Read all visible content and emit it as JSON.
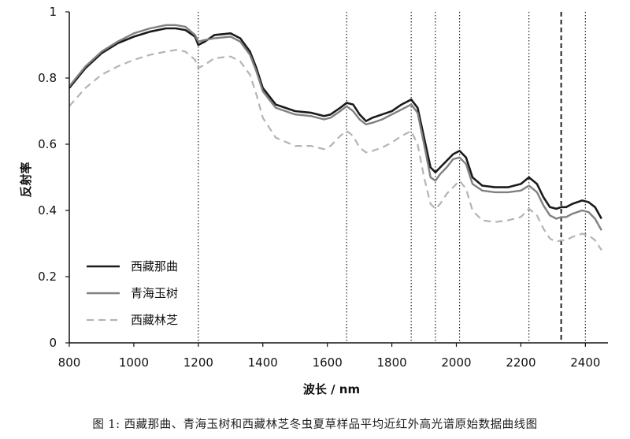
{
  "caption": "图 1:  西藏那曲、青海玉树和西藏林芝冬虫夏草样品平均近红外高光谱原始数据曲线图",
  "chart_data": {
    "type": "line",
    "title": "",
    "xlabel": "波长 / nm",
    "ylabel": "反射率",
    "xlim": [
      800,
      2470
    ],
    "ylim": [
      0,
      1
    ],
    "xticks": [
      800,
      1000,
      1200,
      1400,
      1600,
      1800,
      2000,
      2200,
      2400
    ],
    "yticks": [
      0,
      0.2,
      0.4,
      0.6,
      0.8,
      1
    ],
    "ytick_labels": [
      "0",
      "0.2",
      "0.4",
      "0.6",
      "0.8",
      "1"
    ],
    "legend_position": "bottom-left",
    "vertical_markers": [
      {
        "x": 1200,
        "style": "dotted"
      },
      {
        "x": 1660,
        "style": "dotted"
      },
      {
        "x": 1860,
        "style": "dotted"
      },
      {
        "x": 1935,
        "style": "dotted"
      },
      {
        "x": 2010,
        "style": "dotted"
      },
      {
        "x": 2225,
        "style": "dotted"
      },
      {
        "x": 2325,
        "style": "dashed"
      },
      {
        "x": 2400,
        "style": "dotted"
      }
    ],
    "series": [
      {
        "name": "西藏那曲",
        "color": "#1a1a1a",
        "style": "solid",
        "x": [
          800,
          850,
          900,
          950,
          1000,
          1050,
          1100,
          1130,
          1160,
          1190,
          1200,
          1220,
          1250,
          1300,
          1330,
          1360,
          1380,
          1400,
          1440,
          1500,
          1550,
          1590,
          1610,
          1640,
          1660,
          1680,
          1700,
          1720,
          1740,
          1770,
          1800,
          1830,
          1860,
          1880,
          1900,
          1920,
          1935,
          1950,
          1970,
          1990,
          2010,
          2030,
          2050,
          2080,
          2120,
          2160,
          2200,
          2225,
          2250,
          2270,
          2290,
          2310,
          2325,
          2340,
          2360,
          2390,
          2410,
          2430,
          2450
        ],
        "values": [
          0.77,
          0.83,
          0.875,
          0.905,
          0.925,
          0.94,
          0.95,
          0.95,
          0.945,
          0.925,
          0.9,
          0.91,
          0.93,
          0.935,
          0.92,
          0.88,
          0.83,
          0.77,
          0.72,
          0.7,
          0.695,
          0.685,
          0.69,
          0.71,
          0.725,
          0.72,
          0.69,
          0.67,
          0.68,
          0.69,
          0.7,
          0.72,
          0.735,
          0.71,
          0.62,
          0.53,
          0.515,
          0.53,
          0.55,
          0.57,
          0.58,
          0.56,
          0.5,
          0.475,
          0.47,
          0.47,
          0.48,
          0.5,
          0.48,
          0.44,
          0.41,
          0.405,
          0.41,
          0.41,
          0.42,
          0.43,
          0.425,
          0.41,
          0.375
        ]
      },
      {
        "name": "青海玉树",
        "color": "#808080",
        "style": "solid",
        "x": [
          800,
          850,
          900,
          950,
          1000,
          1050,
          1100,
          1130,
          1160,
          1190,
          1200,
          1220,
          1250,
          1300,
          1330,
          1360,
          1380,
          1400,
          1440,
          1500,
          1550,
          1590,
          1610,
          1640,
          1660,
          1680,
          1700,
          1720,
          1740,
          1770,
          1800,
          1830,
          1860,
          1880,
          1900,
          1920,
          1935,
          1950,
          1970,
          1990,
          2010,
          2030,
          2050,
          2080,
          2120,
          2160,
          2200,
          2225,
          2250,
          2270,
          2290,
          2310,
          2325,
          2340,
          2360,
          2390,
          2410,
          2430,
          2450
        ],
        "values": [
          0.775,
          0.835,
          0.88,
          0.91,
          0.935,
          0.95,
          0.96,
          0.96,
          0.955,
          0.93,
          0.91,
          0.915,
          0.92,
          0.925,
          0.91,
          0.87,
          0.82,
          0.76,
          0.71,
          0.69,
          0.685,
          0.675,
          0.68,
          0.7,
          0.715,
          0.7,
          0.675,
          0.66,
          0.665,
          0.675,
          0.69,
          0.705,
          0.72,
          0.695,
          0.6,
          0.5,
          0.49,
          0.51,
          0.53,
          0.555,
          0.56,
          0.54,
          0.48,
          0.46,
          0.455,
          0.455,
          0.46,
          0.475,
          0.455,
          0.415,
          0.385,
          0.375,
          0.38,
          0.38,
          0.39,
          0.4,
          0.395,
          0.375,
          0.34
        ]
      },
      {
        "name": "西藏林芝",
        "color": "#b4b4b4",
        "style": "dashed",
        "x": [
          800,
          850,
          900,
          950,
          1000,
          1050,
          1100,
          1130,
          1160,
          1190,
          1200,
          1220,
          1250,
          1300,
          1330,
          1360,
          1380,
          1400,
          1440,
          1500,
          1550,
          1590,
          1610,
          1640,
          1660,
          1680,
          1700,
          1720,
          1740,
          1770,
          1800,
          1830,
          1860,
          1880,
          1900,
          1920,
          1935,
          1950,
          1970,
          1990,
          2010,
          2030,
          2050,
          2080,
          2120,
          2160,
          2200,
          2225,
          2250,
          2270,
          2290,
          2310,
          2325,
          2340,
          2360,
          2390,
          2410,
          2430,
          2450
        ],
        "values": [
          0.715,
          0.77,
          0.81,
          0.835,
          0.855,
          0.87,
          0.88,
          0.885,
          0.88,
          0.855,
          0.83,
          0.84,
          0.86,
          0.865,
          0.85,
          0.81,
          0.75,
          0.68,
          0.62,
          0.595,
          0.595,
          0.585,
          0.595,
          0.625,
          0.64,
          0.625,
          0.59,
          0.575,
          0.58,
          0.59,
          0.605,
          0.625,
          0.64,
          0.6,
          0.5,
          0.42,
          0.405,
          0.42,
          0.45,
          0.47,
          0.49,
          0.465,
          0.4,
          0.37,
          0.365,
          0.37,
          0.38,
          0.405,
          0.385,
          0.345,
          0.315,
          0.305,
          0.31,
          0.31,
          0.32,
          0.33,
          0.325,
          0.31,
          0.28
        ]
      }
    ]
  }
}
